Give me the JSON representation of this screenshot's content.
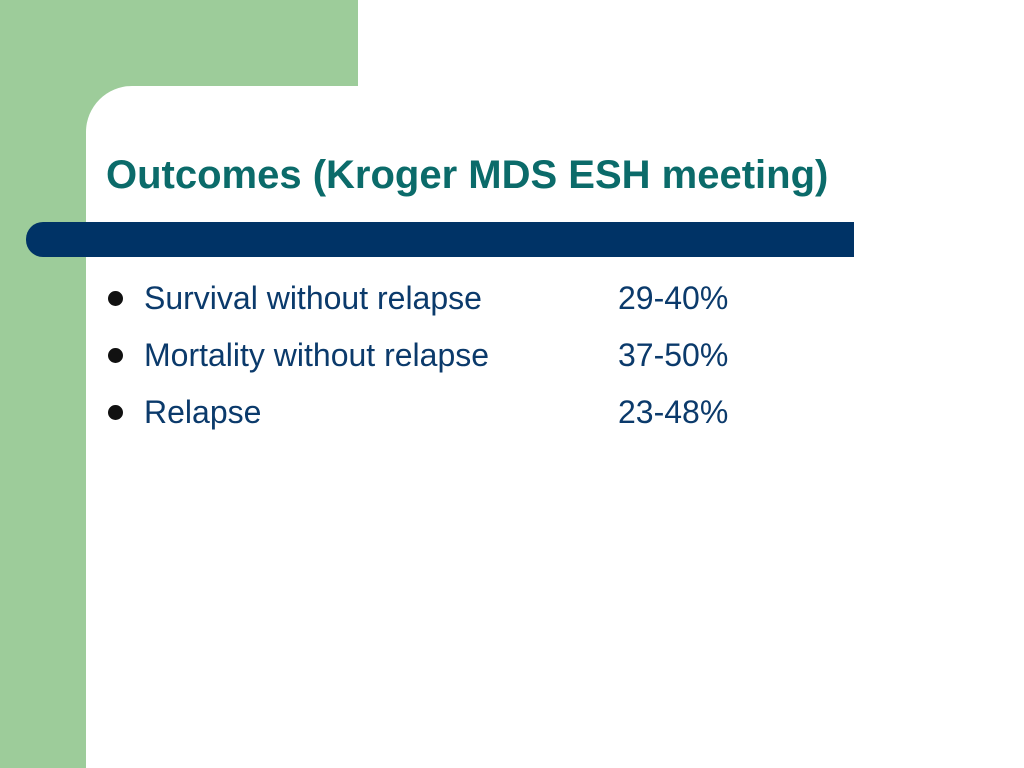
{
  "slide": {
    "title": "Outcomes (Kroger MDS ESH meeting)",
    "bullets": [
      {
        "label": "Survival without relapse",
        "value": "29-40%"
      },
      {
        "label": "Mortality without relapse",
        "value": "37-50%"
      },
      {
        "label": "Relapse",
        "value": "23-48%"
      }
    ]
  },
  "colors": {
    "background": "#ffffff",
    "accent_green": "#9dcc9a",
    "title_teal": "#0b6b6a",
    "bar_navy": "#003366",
    "text_navy": "#0b3a6b",
    "bullet": "#111111"
  }
}
